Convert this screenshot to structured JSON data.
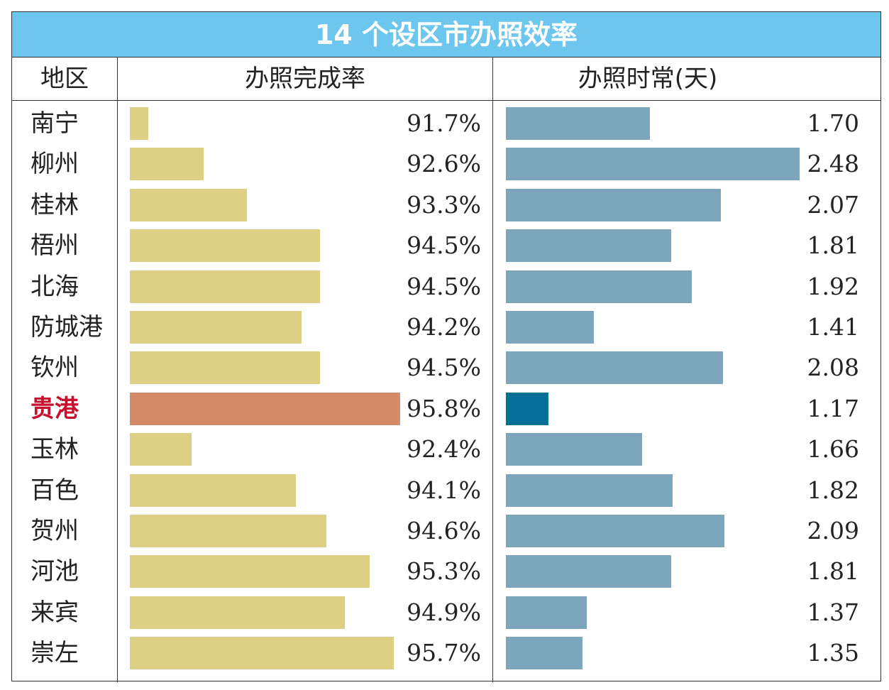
{
  "title": "14 个设区市办照效率",
  "headers": {
    "region": "地区",
    "rate": "办照完成率",
    "time": "办照时常(天)"
  },
  "colors": {
    "title_bg": "#6cc6ee",
    "rate_bar": "#ddd085",
    "rate_highlight": "#d38b6a",
    "time_bar": "#7da6bc",
    "time_highlight": "#066f97",
    "highlight_text": "#c8102e"
  },
  "highlight": "贵港",
  "chart_data": [
    {
      "type": "bar",
      "title": "办照完成率",
      "categories": [
        "南宁",
        "柳州",
        "桂林",
        "梧州",
        "北海",
        "防城港",
        "钦州",
        "贵港",
        "玉林",
        "百色",
        "贺州",
        "河池",
        "来宾",
        "崇左"
      ],
      "values": [
        91.7,
        92.6,
        93.3,
        94.5,
        94.5,
        94.2,
        94.5,
        95.8,
        92.4,
        94.1,
        94.6,
        95.3,
        94.9,
        95.7
      ],
      "labels": [
        "91.7%",
        "92.6%",
        "93.3%",
        "94.5%",
        "94.5%",
        "94.2%",
        "94.5%",
        "95.8%",
        "92.4%",
        "94.1%",
        "94.6%",
        "95.3%",
        "94.9%",
        "95.7%"
      ],
      "unit": "%"
    },
    {
      "type": "bar",
      "title": "办照时常(天)",
      "categories": [
        "南宁",
        "柳州",
        "桂林",
        "梧州",
        "北海",
        "防城港",
        "钦州",
        "贵港",
        "玉林",
        "百色",
        "贺州",
        "河池",
        "来宾",
        "崇左"
      ],
      "values": [
        1.7,
        2.48,
        2.07,
        1.81,
        1.92,
        1.41,
        2.08,
        1.17,
        1.66,
        1.82,
        2.09,
        1.81,
        1.37,
        1.35
      ],
      "labels": [
        "1.70",
        "2.48",
        "2.07",
        "1.81",
        "1.92",
        "1.41",
        "2.08",
        "1.17",
        "1.66",
        "1.82",
        "2.09",
        "1.81",
        "1.37",
        "1.35"
      ]
    }
  ]
}
